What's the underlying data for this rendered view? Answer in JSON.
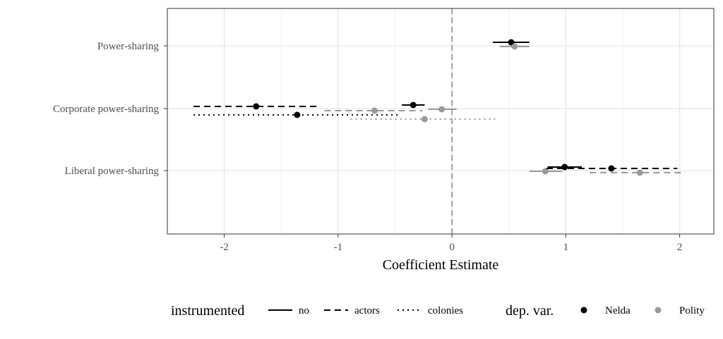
{
  "chart_data": {
    "type": "scatter",
    "xlabel": "Coefficient Estimate",
    "ylabel": "",
    "xlim": [
      -2.5,
      2.3
    ],
    "x_ticks": [
      -2,
      -1,
      0,
      1,
      2
    ],
    "x_tick_labels": [
      "-2",
      "-1",
      "0",
      "1",
      "2"
    ],
    "categories": [
      "Power-sharing",
      "Corporate power-sharing",
      "Liberal power-sharing"
    ],
    "reference_line_x": 0,
    "grid": true,
    "legend_position": "bottom",
    "legend": {
      "instrumented": {
        "title": "instrumented",
        "items": [
          {
            "label": "no",
            "dash": "solid"
          },
          {
            "label": "actors",
            "dash": "dashed"
          },
          {
            "label": "colonies",
            "dash": "dotted"
          }
        ]
      },
      "depvar": {
        "title": "dep. var.",
        "items": [
          {
            "label": "Nelda",
            "color": "#000000"
          },
          {
            "label": "Polity",
            "color": "#999999"
          }
        ]
      }
    },
    "points": [
      {
        "category": "Power-sharing",
        "instrumented": "no",
        "depvar": "Nelda",
        "estimate": 0.52,
        "low": 0.36,
        "high": 0.68
      },
      {
        "category": "Power-sharing",
        "instrumented": "no",
        "depvar": "Polity",
        "estimate": 0.55,
        "low": 0.42,
        "high": 0.68
      },
      {
        "category": "Corporate power-sharing",
        "instrumented": "no",
        "depvar": "Nelda",
        "estimate": -0.34,
        "low": -0.44,
        "high": -0.24
      },
      {
        "category": "Corporate power-sharing",
        "instrumented": "no",
        "depvar": "Polity",
        "estimate": -0.09,
        "low": -0.21,
        "high": 0.04
      },
      {
        "category": "Corporate power-sharing",
        "instrumented": "actors",
        "depvar": "Nelda",
        "estimate": -1.72,
        "low": -2.27,
        "high": -1.19
      },
      {
        "category": "Corporate power-sharing",
        "instrumented": "actors",
        "depvar": "Polity",
        "estimate": -0.68,
        "low": -1.12,
        "high": -0.26
      },
      {
        "category": "Corporate power-sharing",
        "instrumented": "colonies",
        "depvar": "Nelda",
        "estimate": -1.36,
        "low": -2.27,
        "high": -0.45
      },
      {
        "category": "Corporate power-sharing",
        "instrumented": "colonies",
        "depvar": "Polity",
        "estimate": -0.24,
        "low": -0.89,
        "high": 0.38
      },
      {
        "category": "Liberal power-sharing",
        "instrumented": "no",
        "depvar": "Nelda",
        "estimate": 0.99,
        "low": 0.84,
        "high": 1.14
      },
      {
        "category": "Liberal power-sharing",
        "instrumented": "no",
        "depvar": "Polity",
        "estimate": 0.82,
        "low": 0.68,
        "high": 0.97
      },
      {
        "category": "Liberal power-sharing",
        "instrumented": "actors",
        "depvar": "Nelda",
        "estimate": 1.4,
        "low": 0.83,
        "high": 1.98
      },
      {
        "category": "Liberal power-sharing",
        "instrumented": "actors",
        "depvar": "Polity",
        "estimate": 1.65,
        "low": 1.21,
        "high": 2.05
      }
    ]
  }
}
